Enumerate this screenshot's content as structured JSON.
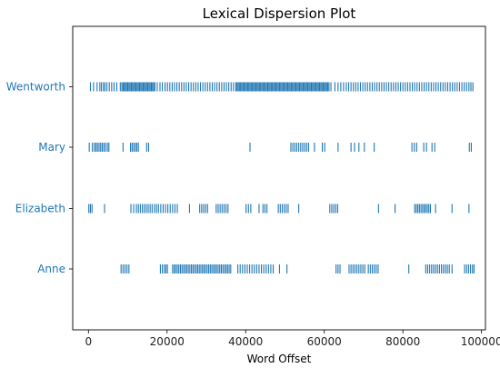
{
  "chart_data": {
    "type": "scatter",
    "title": "Lexical Dispersion Plot",
    "xlabel": "Word Offset",
    "ylabel": "",
    "xlim": [
      -4000,
      101000
    ],
    "xticks": [
      0,
      20000,
      40000,
      60000,
      80000,
      100000
    ],
    "grid": false,
    "legend": "none",
    "marker": "|",
    "color": "#1f77b4",
    "label_color": "#1f77b4",
    "series": [
      {
        "name": "Wentworth",
        "x": [
          500,
          1300,
          2200,
          2900,
          3300,
          3800,
          4200,
          4700,
          5300,
          5900,
          6500,
          7200,
          8100,
          8500,
          8800,
          9100,
          9400,
          9700,
          10000,
          10300,
          10600,
          10900,
          11200,
          11500,
          11800,
          12100,
          12400,
          12700,
          13000,
          13300,
          13600,
          13900,
          14200,
          14500,
          14800,
          15100,
          15400,
          15700,
          16000,
          16300,
          16600,
          16900,
          17500,
          18200,
          18800,
          19500,
          20100,
          20700,
          21300,
          21900,
          22500,
          23100,
          23700,
          24300,
          24900,
          25500,
          26100,
          26700,
          27300,
          27900,
          28500,
          29100,
          29700,
          30300,
          30900,
          31500,
          32100,
          32700,
          33300,
          33900,
          34500,
          35100,
          35700,
          36300,
          36900,
          37500,
          37800,
          38100,
          38400,
          38700,
          39000,
          39300,
          39600,
          39900,
          40200,
          40500,
          40800,
          41100,
          41400,
          41700,
          42000,
          42300,
          42600,
          42900,
          43200,
          43500,
          43800,
          44100,
          44400,
          44700,
          45000,
          45300,
          45600,
          45900,
          46200,
          46500,
          46800,
          47100,
          47400,
          47700,
          48000,
          48300,
          48600,
          48900,
          49200,
          49500,
          49800,
          50100,
          50400,
          50700,
          51000,
          51300,
          51600,
          51900,
          52200,
          52500,
          52800,
          53100,
          53400,
          53700,
          54000,
          54300,
          54600,
          54900,
          55200,
          55500,
          55800,
          56100,
          56400,
          56700,
          57000,
          57300,
          57600,
          57900,
          58200,
          58500,
          58800,
          59100,
          59400,
          59700,
          60000,
          60300,
          60600,
          60900,
          61200,
          61700,
          62700,
          63500,
          64200,
          64900,
          65600,
          66200,
          66800,
          67400,
          68000,
          68600,
          69200,
          69800,
          70400,
          71000,
          71600,
          72200,
          72800,
          73400,
          74000,
          74600,
          75200,
          75800,
          76400,
          77000,
          77600,
          78200,
          78800,
          79400,
          80000,
          80600,
          81200,
          81800,
          82400,
          83000,
          83600,
          84200,
          84800,
          85400,
          86000,
          86600,
          87200,
          87800,
          88400,
          89000,
          89600,
          90200,
          90800,
          91400,
          92000,
          92600,
          93200,
          93800,
          94400,
          95000,
          95600,
          96200,
          96800,
          97300,
          97800
        ]
      },
      {
        "name": "Mary",
        "x": [
          200,
          1000,
          1500,
          1900,
          2300,
          2700,
          3100,
          3500,
          3900,
          4300,
          4800,
          5200,
          8800,
          10700,
          11100,
          11500,
          11900,
          12300,
          12700,
          14800,
          15300,
          41100,
          51500,
          52000,
          52500,
          53000,
          53500,
          54000,
          54500,
          55000,
          55500,
          56000,
          57500,
          59500,
          60100,
          63500,
          66800,
          67700,
          68800,
          70200,
          72700,
          82300,
          82900,
          83500,
          85300,
          86000,
          87400,
          88100,
          96900,
          97400
        ]
      },
      {
        "name": "Elizabeth",
        "x": [
          100,
          500,
          900,
          4100,
          10800,
          11500,
          12200,
          12700,
          13200,
          13700,
          14200,
          14700,
          15200,
          15700,
          16200,
          16800,
          17300,
          17800,
          18400,
          19000,
          19600,
          20200,
          20800,
          21400,
          22000,
          22600,
          25700,
          28300,
          28800,
          29300,
          29800,
          30300,
          32500,
          33000,
          33500,
          34000,
          34500,
          35000,
          35500,
          40100,
          40700,
          41300,
          43400,
          44400,
          44900,
          45400,
          48300,
          48800,
          49300,
          49800,
          50300,
          50800,
          53500,
          61400,
          61900,
          62400,
          62900,
          63400,
          73800,
          78000,
          83000,
          83400,
          83800,
          84200,
          84600,
          85000,
          85400,
          85800,
          86200,
          86600,
          87000,
          88300,
          92500,
          96800
        ]
      },
      {
        "name": "Anne",
        "x": [
          8300,
          8800,
          9300,
          9800,
          10300,
          18300,
          18800,
          19300,
          19700,
          20100,
          21400,
          21800,
          22200,
          22600,
          23000,
          23400,
          23800,
          24200,
          24600,
          25000,
          25400,
          25800,
          26200,
          26600,
          27000,
          27400,
          27800,
          28200,
          28600,
          29000,
          29400,
          29800,
          30200,
          30600,
          31000,
          31400,
          31800,
          32200,
          32600,
          33000,
          33400,
          33800,
          34200,
          34600,
          35000,
          35400,
          35800,
          36200,
          38000,
          38600,
          39200,
          39800,
          40400,
          41000,
          41600,
          42200,
          42800,
          43400,
          44000,
          44600,
          45200,
          45800,
          46400,
          47000,
          48600,
          50500,
          63000,
          63500,
          64000,
          66300,
          66800,
          67300,
          67800,
          68300,
          68800,
          69300,
          69800,
          70300,
          71200,
          71700,
          72200,
          72700,
          73200,
          73700,
          81500,
          85800,
          86300,
          86800,
          87300,
          87800,
          88300,
          88800,
          89300,
          89800,
          90300,
          90800,
          91300,
          91800,
          92500,
          95700,
          96200,
          96700,
          97200,
          97700,
          98100
        ]
      }
    ]
  }
}
